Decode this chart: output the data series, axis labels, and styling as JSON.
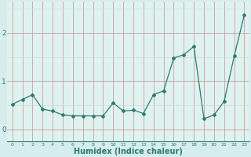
{
  "x": [
    0,
    1,
    2,
    3,
    4,
    5,
    6,
    7,
    8,
    9,
    10,
    11,
    12,
    13,
    14,
    15,
    16,
    17,
    18,
    19,
    20,
    21,
    22,
    23
  ],
  "y": [
    0.52,
    0.62,
    0.72,
    0.42,
    0.38,
    0.3,
    0.28,
    0.28,
    0.28,
    0.28,
    0.55,
    0.38,
    0.4,
    0.33,
    0.72,
    0.8,
    1.48,
    1.55,
    1.72,
    0.22,
    0.3,
    0.58,
    1.52,
    2.38
  ],
  "line_color": "#2d7a6e",
  "marker": "D",
  "marker_size": 2.0,
  "linewidth": 0.9,
  "xlabel": "Humidex (Indice chaleur)",
  "xlabel_fontsize": 7,
  "xlabel_bold": true,
  "yticks": [
    0,
    1,
    2
  ],
  "xtick_labels": [
    "0",
    "1",
    "2",
    "3",
    "4",
    "5",
    "6",
    "7",
    "8",
    "9",
    "10",
    "11",
    "12",
    "13",
    "14",
    "15",
    "16",
    "17",
    "18",
    "19",
    "20",
    "21",
    "22",
    "23"
  ],
  "ylim": [
    -0.25,
    2.65
  ],
  "xlim": [
    -0.5,
    23.5
  ],
  "bg_color": "#d6edee",
  "plot_bg_color": "#dff2f0",
  "grid_color_major": "#c8a0a0",
  "grid_color_minor": "#c8dede",
  "xtick_fontsize": 4.5,
  "ytick_fontsize": 6.5
}
